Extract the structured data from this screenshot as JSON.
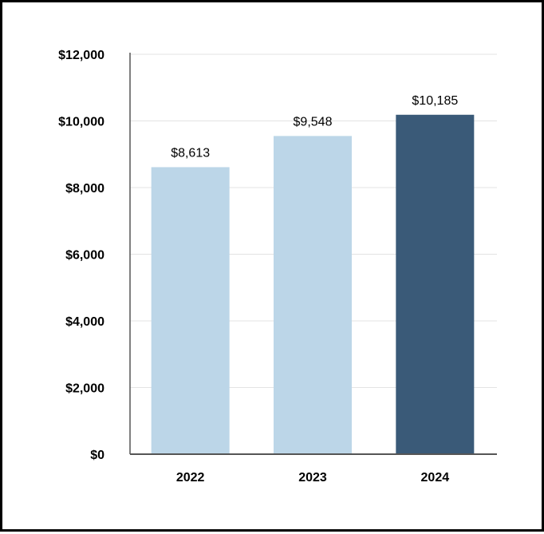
{
  "chart_data": {
    "type": "bar",
    "categories": [
      "2022",
      "2023",
      "2024"
    ],
    "values": [
      8613,
      9548,
      10185
    ],
    "data_labels": [
      "$8,613",
      "$9,548",
      "$10,185"
    ],
    "ylim": [
      0,
      12000
    ],
    "yticks": [
      0,
      2000,
      4000,
      6000,
      8000,
      10000,
      12000
    ],
    "ytick_labels": [
      "$0",
      "$2,000",
      "$4,000",
      "$6,000",
      "$8,000",
      "$10,000",
      "$12,000"
    ],
    "grid": true,
    "legend": "none",
    "colors": {
      "bar_default": "#bcd6e8",
      "bar_highlight": "#3a5a78",
      "grid": "#e3e3e3",
      "axis": "#555555"
    },
    "highlight_index": 2
  }
}
